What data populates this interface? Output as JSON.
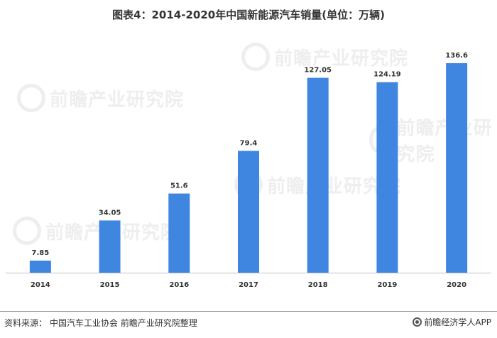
{
  "title": "图表4：2014-2020年中国新能源汽车销量(单位：万辆)",
  "chart_data": {
    "type": "bar",
    "title": "图表4：2014-2020年中国新能源汽车销量(单位：万辆)",
    "categories": [
      "2014",
      "2015",
      "2016",
      "2017",
      "2018",
      "2019",
      "2020"
    ],
    "values": [
      7.85,
      34.05,
      51.6,
      79.4,
      127.05,
      124.19,
      136.6
    ],
    "value_labels": [
      "7.85",
      "34.05",
      "51.6",
      "79.4",
      "127.05",
      "124.19",
      "136.6"
    ],
    "xlabel": "",
    "ylabel": "",
    "ylim": [
      0,
      150
    ],
    "grid": false,
    "legend": "none",
    "bar_color": "#3F86E0"
  },
  "watermark": {
    "text": "前瞻产业研究院"
  },
  "footer": {
    "source_label": "资料来源：",
    "source_value": "中国汽车工业协会 前瞻产业研究院整理",
    "brand": "前瞻经济学人APP"
  },
  "colors": {
    "bar": "#3F86E0",
    "axis": "#BFBFBF",
    "text": "#333333"
  }
}
